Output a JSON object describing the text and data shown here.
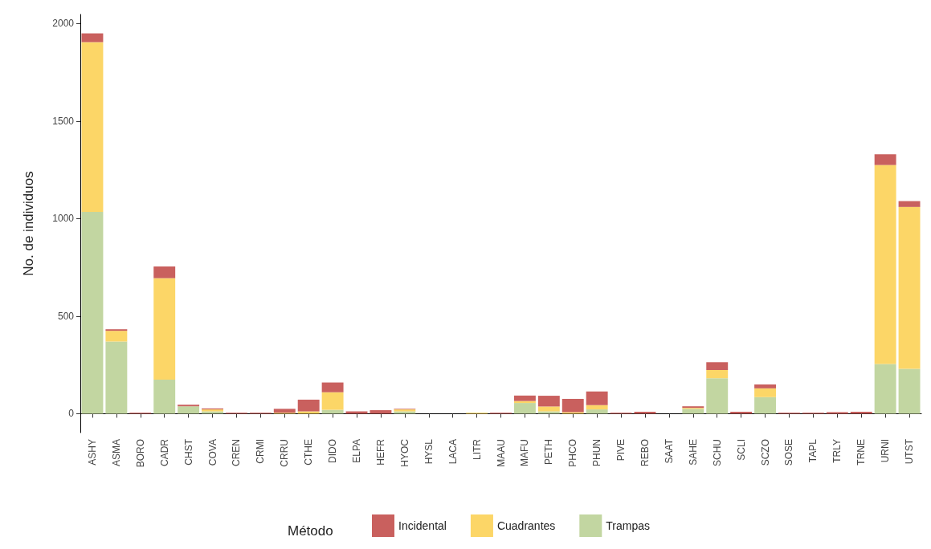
{
  "chart_data": {
    "type": "bar",
    "stacked": true,
    "ylabel": "No. de individuos",
    "legend_title": "Método",
    "legend": "bottom",
    "categories": [
      "ASHY",
      "ASMA",
      "BORO",
      "CADR",
      "CHST",
      "COVA",
      "CREN",
      "CRMI",
      "CRRU",
      "CTHE",
      "DIDO",
      "ELPA",
      "HEFR",
      "HYOC",
      "HYSL",
      "LACA",
      "LITR",
      "MAAU",
      "MAFU",
      "PETH",
      "PHCO",
      "PHUN",
      "PIVE",
      "REBO",
      "SAAT",
      "SAHE",
      "SCHU",
      "SCLI",
      "SCZO",
      "SOSE",
      "TAPL",
      "TRLY",
      "TRNE",
      "URNI",
      "UTST"
    ],
    "ylim": [
      -97,
      2047
    ],
    "yticks": [
      0,
      500,
      1000,
      1500,
      2000
    ],
    "series": [
      {
        "name": "Trampas",
        "color": "#c2d6a1",
        "values": [
          1035,
          370,
          0,
          175,
          38,
          12,
          0,
          0,
          0,
          0,
          20,
          0,
          0,
          12,
          0,
          0,
          0,
          0,
          55,
          12,
          0,
          22,
          0,
          0,
          0,
          25,
          182,
          0,
          85,
          0,
          0,
          0,
          0,
          255,
          230
        ]
      },
      {
        "name": "Cuadrantes",
        "color": "#fcd667",
        "values": [
          870,
          55,
          0,
          520,
          0,
          10,
          0,
          0,
          5,
          12,
          90,
          0,
          0,
          10,
          0,
          0,
          5,
          0,
          10,
          25,
          8,
          22,
          0,
          0,
          0,
          5,
          42,
          0,
          45,
          0,
          0,
          0,
          0,
          1020,
          830
        ]
      },
      {
        "name": "Incidental",
        "color": "#c9605e",
        "values": [
          45,
          8,
          5,
          60,
          8,
          5,
          5,
          5,
          20,
          60,
          50,
          12,
          18,
          3,
          0,
          0,
          0,
          5,
          28,
          55,
          68,
          70,
          5,
          10,
          0,
          8,
          40,
          10,
          20,
          5,
          5,
          8,
          10,
          55,
          30
        ]
      }
    ]
  }
}
